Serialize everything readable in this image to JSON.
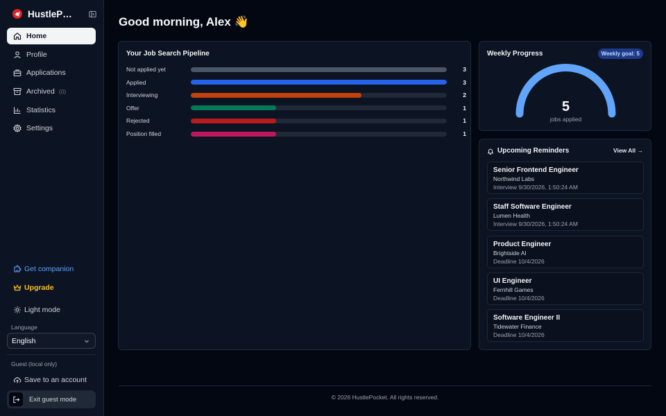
{
  "app": {
    "name": "HustlePocket"
  },
  "sidebar": {
    "items": [
      {
        "label": "Home",
        "icon": "home-icon",
        "active": true
      },
      {
        "label": "Profile",
        "icon": "user-icon"
      },
      {
        "label": "Applications",
        "icon": "briefcase-icon"
      },
      {
        "label": "Archived",
        "icon": "archive-icon",
        "count": "(0)"
      },
      {
        "label": "Statistics",
        "icon": "bar-chart-icon"
      },
      {
        "label": "Settings",
        "icon": "gear-icon"
      }
    ],
    "companion_label": "Get companion",
    "upgrade_label": "Upgrade",
    "theme_label": "Light mode",
    "language_label": "Language",
    "language_value": "English",
    "guest_label": "Guest (local only)",
    "save_account_label": "Save to an account",
    "exit_guest_label": "Exit guest mode"
  },
  "greeting": "Good morning, Alex 👋",
  "pipeline": {
    "title": "Your Job Search Pipeline",
    "max": 3,
    "rows": [
      {
        "label": "Not applied yet",
        "count": "3",
        "value": 3,
        "color": "#4b5563"
      },
      {
        "label": "Applied",
        "count": "3",
        "value": 3,
        "color": "#2563eb"
      },
      {
        "label": "Interviewing",
        "count": "2",
        "value": 2,
        "color": "#c2410c"
      },
      {
        "label": "Offer",
        "count": "1",
        "value": 1,
        "color": "#047857"
      },
      {
        "label": "Rejected",
        "count": "1",
        "value": 1,
        "color": "#b91c1c"
      },
      {
        "label": "Position filled",
        "count": "1",
        "value": 1,
        "color": "#be185d"
      }
    ]
  },
  "weekly": {
    "title": "Weekly Progress",
    "goal_badge": "Weekly goal: 5",
    "value": "5",
    "progress": 1.0,
    "sub": "jobs applied",
    "color": "#60a5fa"
  },
  "reminders": {
    "title": "Upcoming Reminders",
    "view_all": "View All →",
    "items": [
      {
        "title": "Senior Frontend Engineer",
        "company": "Northwind Labs",
        "date": "Interview 9/30/2026, 1:50:24 AM"
      },
      {
        "title": "Staff Software Engineer",
        "company": "Lumen Health",
        "date": "Interview 9/30/2026, 1:50:24 AM"
      },
      {
        "title": "Product Engineer",
        "company": "Brightside AI",
        "date": "Deadline 10/4/2026"
      },
      {
        "title": "UI Engineer",
        "company": "Fernhill Games",
        "date": "Deadline 10/4/2026"
      },
      {
        "title": "Software Engineer II",
        "company": "Tidewater Finance",
        "date": "Deadline 10/4/2026"
      }
    ]
  },
  "footer": "© 2026 HustlePocket. All rights reserved."
}
